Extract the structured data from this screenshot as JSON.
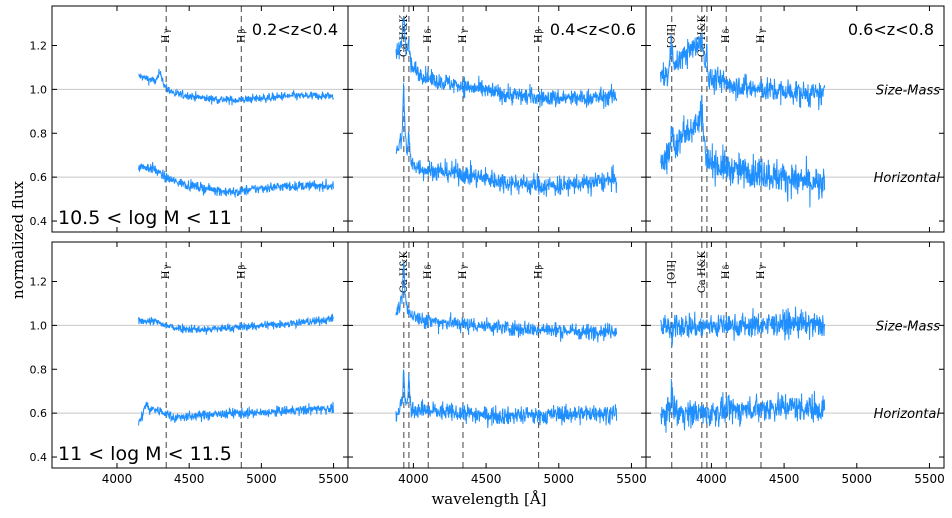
{
  "figure": {
    "xlabel": "wavelength [Å]",
    "ylabel": "normalized flux"
  },
  "colors": {
    "spectrum": "#1f8fff",
    "reference": "#c8c8c8",
    "lines": "#555555",
    "axis": "#000000"
  },
  "chart_data": {
    "type": "line",
    "xlim": [
      3550,
      5600
    ],
    "ylim": [
      0.35,
      1.38
    ],
    "xticks": [
      "4000",
      "4500",
      "5000",
      "5500"
    ],
    "xtick_values": [
      4000,
      4500,
      5000,
      5500
    ],
    "yticks": [
      "0.4",
      "0.6",
      "0.8",
      "1.0",
      "1.2"
    ],
    "ytick_values": [
      0.4,
      0.6,
      0.8,
      1.0,
      1.2
    ],
    "reference_levels": [
      0.6,
      1.0
    ],
    "rows": [
      {
        "mass_label": "10.5 < log M < 11"
      },
      {
        "mass_label": "11 < log M < 11.5"
      }
    ],
    "columns": [
      {
        "redshift_label": "0.2<z<0.4",
        "wavelength_range": [
          4150,
          5500
        ],
        "lines": [
          {
            "label": "H$_\\gamma$",
            "wavelength": 4341
          },
          {
            "label": "H$_\\beta$",
            "wavelength": 4861
          }
        ]
      },
      {
        "redshift_label": "0.4<z<0.6",
        "wavelength_range": [
          3880,
          5400
        ],
        "lines": [
          {
            "label": "Ca H&K",
            "wavelength": 3934
          },
          {
            "label": "",
            "wavelength": 3969
          },
          {
            "label": "H$_\\delta$",
            "wavelength": 4102
          },
          {
            "label": "H$_\\gamma$",
            "wavelength": 4341
          },
          {
            "label": "H$_\\beta$",
            "wavelength": 4861
          }
        ]
      },
      {
        "redshift_label": "0.6<z<0.8",
        "wavelength_range": [
          3650,
          4780
        ],
        "lines": [
          {
            "label": "[OII]",
            "wavelength": 3727
          },
          {
            "label": "Ca H&K",
            "wavelength": 3934
          },
          {
            "label": "",
            "wavelength": 3969
          },
          {
            "label": "H$_\\delta$",
            "wavelength": 4102
          },
          {
            "label": "H$_\\gamma$",
            "wavelength": 4341
          }
        ]
      }
    ],
    "series": [
      {
        "name": "Size-Mass",
        "offset": 1.0
      },
      {
        "name": "Horizontal",
        "offset": 0.6
      }
    ],
    "panels": [
      {
        "row": 0,
        "col": 0,
        "spectra": [
          {
            "name": "Size-Mass",
            "x": [
              4150,
              4250,
              4330,
              4400,
              4600,
              4800,
              5000,
              5200,
              5400,
              5500
            ],
            "y": [
              1.06,
              1.04,
              1.01,
              0.98,
              0.96,
              0.95,
              0.96,
              0.97,
              0.97,
              0.97
            ],
            "noise": 0.012,
            "features": [
              [
                4300,
                0.05,
                15
              ]
            ]
          },
          {
            "name": "Horizontal",
            "x": [
              4150,
              4250,
              4330,
              4400,
              4600,
              4800,
              5000,
              5200,
              5400,
              5500
            ],
            "y": [
              0.65,
              0.64,
              0.6,
              0.58,
              0.55,
              0.53,
              0.55,
              0.56,
              0.56,
              0.56
            ],
            "noise": 0.014,
            "features": []
          }
        ]
      },
      {
        "row": 0,
        "col": 1,
        "spectra": [
          {
            "name": "Size-Mass",
            "x": [
              3880,
              3930,
              3980,
              4100,
              4300,
              4600,
              4900,
              5200,
              5400
            ],
            "y": [
              1.15,
              1.22,
              1.1,
              1.05,
              1.02,
              0.98,
              0.96,
              0.96,
              0.97
            ],
            "noise": 0.025,
            "features": [
              [
                3934,
                0.12,
                8
              ],
              [
                3969,
                0.08,
                8
              ]
            ]
          },
          {
            "name": "Horizontal",
            "x": [
              3880,
              3930,
              3980,
              4100,
              4300,
              4600,
              4900,
              5200,
              5400
            ],
            "y": [
              0.72,
              0.78,
              0.66,
              0.63,
              0.62,
              0.58,
              0.56,
              0.57,
              0.59
            ],
            "noise": 0.028,
            "features": [
              [
                3934,
                0.22,
                6
              ],
              [
                3969,
                0.1,
                6
              ]
            ]
          }
        ]
      },
      {
        "row": 0,
        "col": 2,
        "spectra": [
          {
            "name": "Size-Mass",
            "x": [
              3650,
              3727,
              3800,
              3934,
              3969,
              4100,
              4300,
              4500,
              4780
            ],
            "y": [
              1.05,
              1.08,
              1.15,
              1.22,
              1.05,
              1.03,
              1.0,
              0.99,
              0.97
            ],
            "noise": 0.035,
            "features": [
              [
                3727,
                0.12,
                10
              ],
              [
                3969,
                0.12,
                6
              ]
            ]
          },
          {
            "name": "Horizontal",
            "x": [
              3650,
              3727,
              3800,
              3934,
              3969,
              4100,
              4300,
              4500,
              4780
            ],
            "y": [
              0.68,
              0.7,
              0.8,
              0.86,
              0.68,
              0.64,
              0.62,
              0.6,
              0.56
            ],
            "noise": 0.045,
            "features": [
              [
                3727,
                0.1,
                10
              ],
              [
                3934,
                0.06,
                8
              ]
            ]
          }
        ]
      },
      {
        "row": 1,
        "col": 0,
        "spectra": [
          {
            "name": "Size-Mass",
            "x": [
              4150,
              4250,
              4330,
              4400,
              4600,
              4800,
              5000,
              5200,
              5400,
              5500
            ],
            "y": [
              1.02,
              1.02,
              1.0,
              0.99,
              0.98,
              0.99,
              1.0,
              1.01,
              1.02,
              1.03
            ],
            "noise": 0.012,
            "features": []
          },
          {
            "name": "Horizontal",
            "x": [
              4150,
              4250,
              4330,
              4400,
              4600,
              4800,
              5000,
              5200,
              5400,
              5500
            ],
            "y": [
              0.56,
              0.62,
              0.6,
              0.58,
              0.59,
              0.6,
              0.6,
              0.61,
              0.62,
              0.62
            ],
            "noise": 0.014,
            "features": [
              [
                4200,
                0.05,
                15
              ]
            ]
          }
        ]
      },
      {
        "row": 1,
        "col": 1,
        "spectra": [
          {
            "name": "Size-Mass",
            "x": [
              3880,
              3930,
              3980,
              4100,
              4300,
              4600,
              4900,
              5200,
              5400
            ],
            "y": [
              1.05,
              1.12,
              1.05,
              1.02,
              1.01,
              0.99,
              0.98,
              0.97,
              0.98
            ],
            "noise": 0.022,
            "features": [
              [
                3934,
                0.14,
                6
              ]
            ]
          },
          {
            "name": "Horizontal",
            "x": [
              3880,
              3930,
              3980,
              4100,
              4300,
              4600,
              4900,
              5200,
              5400
            ],
            "y": [
              0.58,
              0.66,
              0.62,
              0.61,
              0.6,
              0.59,
              0.59,
              0.6,
              0.6
            ],
            "noise": 0.025,
            "features": [
              [
                3934,
                0.12,
                5
              ],
              [
                3969,
                0.12,
                5
              ]
            ]
          }
        ]
      },
      {
        "row": 1,
        "col": 2,
        "spectra": [
          {
            "name": "Size-Mass",
            "x": [
              3650,
              3727,
              3800,
              3934,
              3969,
              4100,
              4300,
              4500,
              4780
            ],
            "y": [
              1.0,
              1.0,
              1.0,
              0.99,
              1.0,
              1.0,
              1.0,
              1.01,
              1.0
            ],
            "noise": 0.035,
            "features": [
              [
                3727,
                -0.07,
                8
              ]
            ]
          },
          {
            "name": "Horizontal",
            "x": [
              3650,
              3727,
              3800,
              3934,
              3969,
              4100,
              4300,
              4500,
              4780
            ],
            "y": [
              0.58,
              0.62,
              0.6,
              0.6,
              0.6,
              0.61,
              0.62,
              0.63,
              0.62
            ],
            "noise": 0.038,
            "features": [
              [
                3727,
                0.06,
                8
              ]
            ]
          }
        ]
      }
    ]
  }
}
